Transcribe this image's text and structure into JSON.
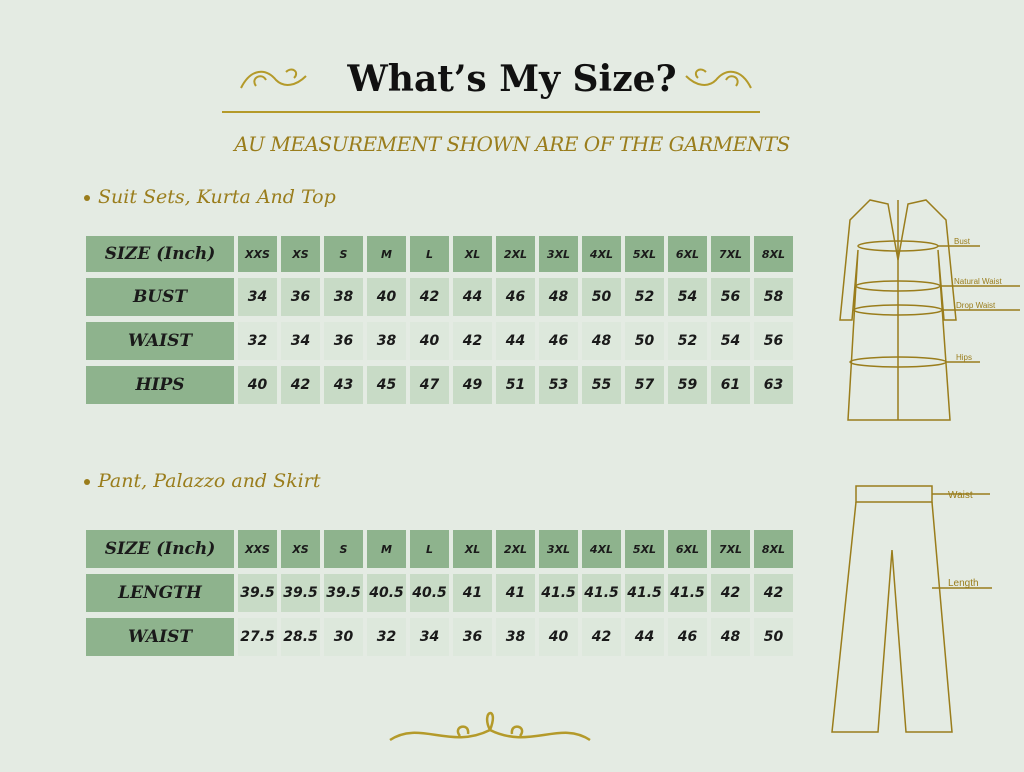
{
  "title": "What’s My Size?",
  "subtitle": "AU MEASUREMENT SHOWN ARE OF THE GARMENTS",
  "colors": {
    "accent": "#9a7d1c",
    "header_cell": "#8eb38d",
    "cell_light": "#c8dbc6",
    "background": "#e4ebe3"
  },
  "section1": {
    "heading": "Suit Sets, Kurta And Top",
    "sizes": [
      "XXS",
      "XS",
      "S",
      "M",
      "L",
      "XL",
      "2XL",
      "3XL",
      "4XL",
      "5XL",
      "6XL",
      "7XL",
      "8XL"
    ],
    "header_label": "SIZE (Inch)",
    "rows": [
      {
        "label": "BUST",
        "values": [
          "34",
          "36",
          "38",
          "40",
          "42",
          "44",
          "46",
          "48",
          "50",
          "52",
          "54",
          "56",
          "58"
        ]
      },
      {
        "label": "WAIST",
        "values": [
          "32",
          "34",
          "36",
          "38",
          "40",
          "42",
          "44",
          "46",
          "48",
          "50",
          "52",
          "54",
          "56"
        ]
      },
      {
        "label": "HIPS",
        "values": [
          "40",
          "42",
          "43",
          "45",
          "47",
          "49",
          "51",
          "53",
          "55",
          "57",
          "59",
          "61",
          "63"
        ]
      }
    ]
  },
  "section2": {
    "heading": "Pant, Palazzo and Skirt",
    "sizes": [
      "XXS",
      "XS",
      "S",
      "M",
      "L",
      "XL",
      "2XL",
      "3XL",
      "4XL",
      "5XL",
      "6XL",
      "7XL",
      "8XL"
    ],
    "header_label": "SIZE (Inch)",
    "rows": [
      {
        "label": "LENGTH",
        "values": [
          "39.5",
          "39.5",
          "39.5",
          "40.5",
          "40.5",
          "41",
          "41",
          "41.5",
          "41.5",
          "41.5",
          "41.5",
          "42",
          "42"
        ]
      },
      {
        "label": "WAIST",
        "values": [
          "27.5",
          "28.5",
          "30",
          "32",
          "34",
          "36",
          "38",
          "40",
          "42",
          "44",
          "46",
          "48",
          "50"
        ]
      }
    ]
  },
  "kurta_labels": {
    "bust": "Bust",
    "natural_waist": "Natural Waist",
    "drop_waist": "Drop Waist",
    "hips": "Hips"
  },
  "pant_labels": {
    "waist": "Waist",
    "length": "Length"
  }
}
